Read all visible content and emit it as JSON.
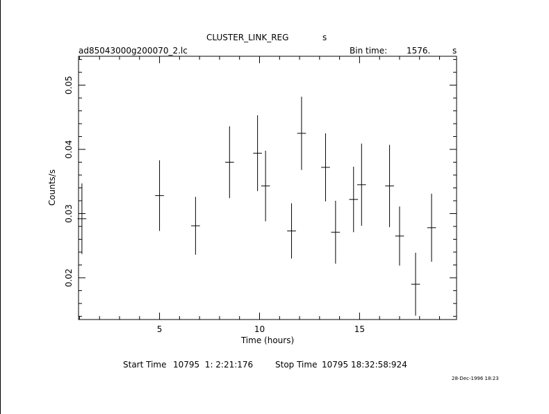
{
  "header": {
    "title": "CLUSTER_LINK_REG",
    "title_unit": "s",
    "filename": "ad85043000g200070_2.lc",
    "bin_label": "Bin time:",
    "bin_value": "1576.",
    "bin_unit": "s"
  },
  "footer": {
    "start_label": "Start Time",
    "start_value": "10795  1: 2:21:176",
    "stop_label": "Stop Time",
    "stop_value": "10795 18:32:58:924",
    "timestamp": "28-Dec-1996 18:23"
  },
  "chart_data": {
    "type": "scatter",
    "title": "CLUSTER_LINK_REG",
    "xlabel": "Time (hours)",
    "ylabel": "Counts/s",
    "xlim": [
      0.95,
      19.85
    ],
    "ylim": [
      0.0135,
      0.0545
    ],
    "xticks": [
      5,
      10,
      15
    ],
    "yticks": [
      0.02,
      0.03,
      0.04,
      0.05
    ],
    "ytick_labels": [
      "0.02",
      "0.03",
      "0.04",
      "0.05"
    ],
    "grid": false,
    "points": [
      {
        "x": 1.12,
        "xerr": 0.22,
        "y": 0.0292,
        "yerr": 0.0055
      },
      {
        "x": 5.0,
        "xerr": 0.22,
        "y": 0.0328,
        "yerr": 0.0055
      },
      {
        "x": 6.8,
        "xerr": 0.22,
        "y": 0.0281,
        "yerr": 0.0045
      },
      {
        "x": 8.5,
        "xerr": 0.22,
        "y": 0.038,
        "yerr": 0.0056
      },
      {
        "x": 9.9,
        "xerr": 0.22,
        "y": 0.0394,
        "yerr": 0.0059
      },
      {
        "x": 10.3,
        "xerr": 0.22,
        "y": 0.0343,
        "yerr": 0.0055
      },
      {
        "x": 11.6,
        "xerr": 0.22,
        "y": 0.0273,
        "yerr": 0.0043
      },
      {
        "x": 12.1,
        "xerr": 0.22,
        "y": 0.0425,
        "yerr": 0.0057
      },
      {
        "x": 13.3,
        "xerr": 0.22,
        "y": 0.0372,
        "yerr": 0.0053
      },
      {
        "x": 13.8,
        "xerr": 0.22,
        "y": 0.0271,
        "yerr": 0.0049
      },
      {
        "x": 14.7,
        "xerr": 0.22,
        "y": 0.0322,
        "yerr": 0.0051
      },
      {
        "x": 15.1,
        "xerr": 0.22,
        "y": 0.0345,
        "yerr": 0.0064
      },
      {
        "x": 16.5,
        "xerr": 0.22,
        "y": 0.0343,
        "yerr": 0.0064
      },
      {
        "x": 17.0,
        "xerr": 0.22,
        "y": 0.0265,
        "yerr": 0.0046
      },
      {
        "x": 17.8,
        "xerr": 0.22,
        "y": 0.019,
        "yerr": 0.0049
      },
      {
        "x": 18.6,
        "xerr": 0.22,
        "y": 0.0278,
        "yerr": 0.0053
      }
    ]
  }
}
